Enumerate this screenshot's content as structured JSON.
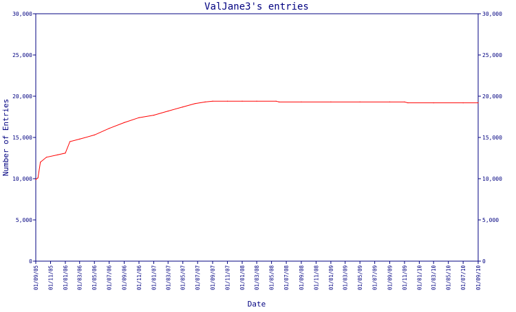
{
  "chart_data": {
    "type": "line",
    "title": "ValJane3's entries",
    "xlabel": "Date",
    "ylabel": "Number of Entries",
    "ylim": [
      0,
      30000
    ],
    "y_ticks": [
      0,
      5000,
      10000,
      15000,
      20000,
      25000,
      30000
    ],
    "y_tick_labels": [
      "0",
      "5,000",
      "10,000",
      "15,000",
      "20,000",
      "25,000",
      "30,000"
    ],
    "x_tick_labels": [
      "01/09/05",
      "01/11/05",
      "01/01/06",
      "01/03/06",
      "01/05/06",
      "01/07/06",
      "01/09/06",
      "01/11/06",
      "01/01/07",
      "01/03/07",
      "01/05/07",
      "01/07/07",
      "01/09/07",
      "01/11/07",
      "01/01/08",
      "01/03/08",
      "01/05/08",
      "01/07/08",
      "01/09/08",
      "01/11/08",
      "01/01/09",
      "01/03/09",
      "01/05/09",
      "01/07/09",
      "01/09/09",
      "01/11/09",
      "01/01/10",
      "01/03/10",
      "01/05/10",
      "01/07/10",
      "01/09/10"
    ],
    "grid": false,
    "colors": {
      "axis": "#000080",
      "text": "#000080",
      "line": "#ff0000"
    },
    "series": [
      {
        "points": [
          {
            "x": "01/09/05",
            "y": 9900
          },
          {
            "x": "10/09/05",
            "y": 10100
          },
          {
            "x": "20/09/05",
            "y": 12000
          },
          {
            "x": "15/10/05",
            "y": 12600
          },
          {
            "x": "01/12/05",
            "y": 12900
          },
          {
            "x": "01/01/06",
            "y": 13100
          },
          {
            "x": "20/01/06",
            "y": 14500
          },
          {
            "x": "01/03/06",
            "y": 14800
          },
          {
            "x": "01/05/06",
            "y": 15300
          },
          {
            "x": "01/07/06",
            "y": 16100
          },
          {
            "x": "01/09/06",
            "y": 16800
          },
          {
            "x": "01/11/06",
            "y": 17400
          },
          {
            "x": "01/01/07",
            "y": 17700
          },
          {
            "x": "01/03/07",
            "y": 18200
          },
          {
            "x": "01/05/07",
            "y": 18700
          },
          {
            "x": "20/06/07",
            "y": 19100
          },
          {
            "x": "01/08/07",
            "y": 19300
          },
          {
            "x": "01/09/07",
            "y": 19400
          },
          {
            "x": "01/11/07",
            "y": 19400
          },
          {
            "x": "01/01/08",
            "y": 19400
          },
          {
            "x": "01/03/08",
            "y": 19400
          },
          {
            "x": "20/05/08",
            "y": 19400
          },
          {
            "x": "01/06/08",
            "y": 19300
          },
          {
            "x": "01/09/08",
            "y": 19300
          },
          {
            "x": "01/01/09",
            "y": 19300
          },
          {
            "x": "01/05/09",
            "y": 19300
          },
          {
            "x": "01/09/09",
            "y": 19300
          },
          {
            "x": "01/11/09",
            "y": 19300
          },
          {
            "x": "15/11/09",
            "y": 19200
          },
          {
            "x": "01/03/10",
            "y": 19200
          },
          {
            "x": "01/07/10",
            "y": 19200
          },
          {
            "x": "01/09/10",
            "y": 19200
          }
        ]
      }
    ]
  }
}
